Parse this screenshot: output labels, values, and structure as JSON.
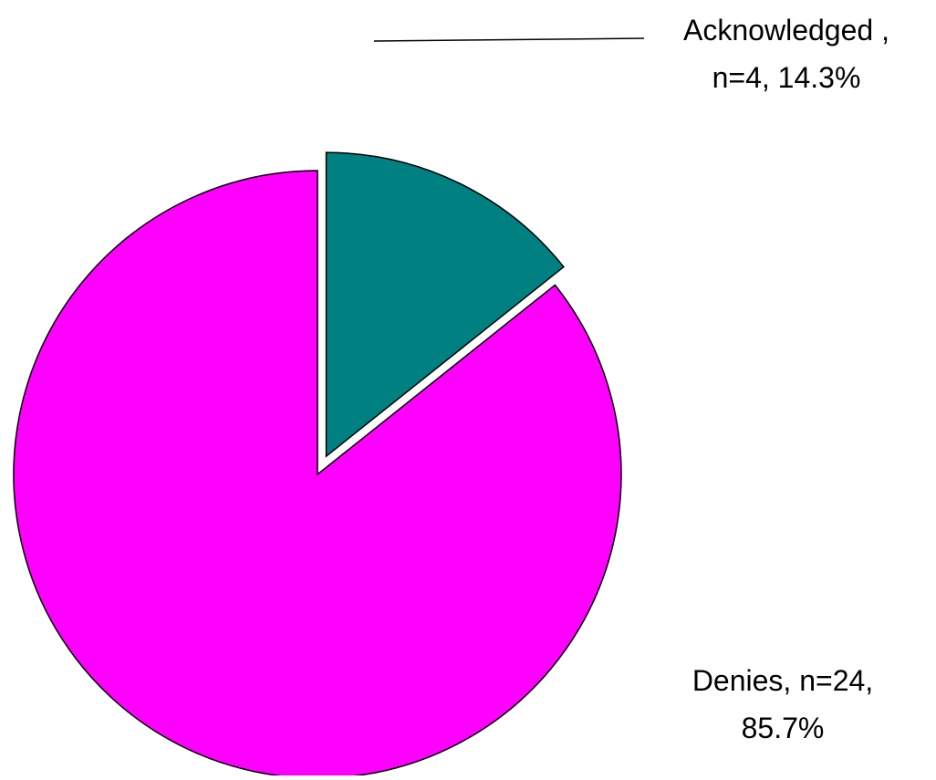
{
  "chart_data": {
    "type": "pie",
    "slices": [
      {
        "name": "Acknowledged",
        "n": 4,
        "percent": 14.3,
        "label_lines": [
          "Acknowledged ,",
          "n=4, 14.3%"
        ],
        "color": "#008080",
        "exploded": true
      },
      {
        "name": "Denies",
        "n": 24,
        "percent": 85.7,
        "label_lines": [
          "Denies, n=24,",
          "85.7%"
        ],
        "color": "#FF00FF",
        "exploded": false
      }
    ],
    "legend": "none"
  }
}
